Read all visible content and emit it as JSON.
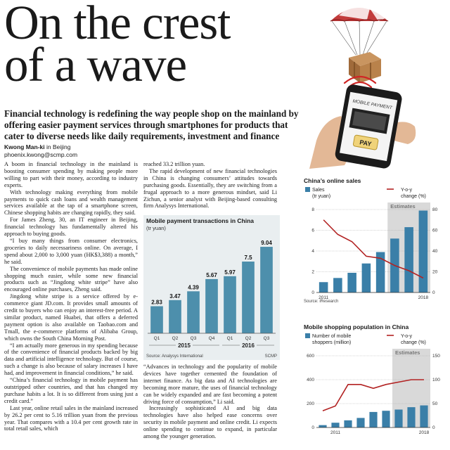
{
  "headline": [
    "On the crest",
    "of a wave"
  ],
  "deck": "Financial technology is redefining the way people shop on the mainland by offering easier payment services through smartphones for products that cater to diverse needs like daily requirements, investment and finance",
  "byline": {
    "name": "Kwong Man-ki",
    "location": "in Beijing",
    "email": "phoenix.kwong@scmp.com"
  },
  "illustration": {
    "phone_screen_text": "MOBILE PAYMENT",
    "pay_button": "PAY"
  },
  "col1_paragraphs": [
    "A boom in financial technology in the mainland is boosting consumer spending by making people more willing to part with their money, according to industry experts.",
    "With technology making everything from mobile payments to quick cash loans and wealth management services available at the tap of a smartphone screen, Chinese shopping habits are changing rapidly, they said.",
    "For James Zheng, 30, an IT engineer in Beijing, financial technology has fundamentally altered his approach to buying goods.",
    "“I buy many things from consumer electronics, groceries to daily necessariness online. On average, I spend about 2,000 to 3,000 yuan (HK$3,388) a month,” he said.",
    "The convenience of mobile payments has made online shopping much easier, while some new financial products such as “Jingdong white stripe” have also encouraged online purchases, Zheng said.",
    "Jingdong white stripe is a service offered by e-commerce giant JD.com. It provides small amounts of credit to buyers who can enjoy an interest-free period. A similar product, named Huabei, that offers a deferred payment option is also available on Taobao.com and Tmall, the e-commerce platforms of Alibaba Group, which owns the South China Morning Post.",
    "“I am actually more generous in my spending because of the convenience of financial products backed by big data and artificial intelligence technology. But of course, such a change is also because of salary increases I have had, and improvement in financial conditions,” he said.",
    "“China’s financial technology in mobile payment has outstripped other countries, and that has changed my purchase habits a lot. It is so different from using just a credit card.”",
    "Last year, online retail sales in the mainland increased by 26.2 per cent to 5.16 trillion yuan from the previous year. That compares with a 10.4 per cent growth rate in total retail sales, which"
  ],
  "col2_top_paragraphs": [
    "reached 33.2 trillion yuan.",
    "The rapid development of new financial technologies in China is changing consumers’ attitudes towards purchasing goods. Essentially, they are switching from a frugal approach to a more generous mindset, said Li Zichun, a senior analyst with Beijing-based consulting firm Analysys International."
  ],
  "col2_bottom_paragraphs": [
    "“Advances in technology and the popularity of mobile devices have together cemented the foundation of internet finance. As big data and AI technologies are becoming more mature, the uses of financial technology can be widely expanded and are fast becoming a potent driving force of consumption,” Li said.",
    "Increasingly sophisticated AI and big data technologies have also helped ease concerns over security in mobile payment and online credit. Li expects online spending to continue to expand, in particular among the younger generation."
  ],
  "chart_data": [
    {
      "type": "bar",
      "title": "Mobile payment transactions in China",
      "ylabel": "(tr yuan)",
      "categories": [
        "Q1",
        "Q2",
        "Q3",
        "Q4",
        "Q1",
        "Q2",
        "Q3"
      ],
      "groups": [
        {
          "label": "2015",
          "span": [
            0,
            3
          ]
        },
        {
          "label": "2016",
          "span": [
            4,
            6
          ]
        }
      ],
      "values": [
        2.83,
        3.47,
        4.39,
        5.67,
        5.97,
        7.5,
        9.04
      ],
      "value_labels": [
        "2.83",
        "3.47",
        "4.39",
        "5.67",
        "5.97",
        "7.5",
        "9.04"
      ],
      "ylim": [
        0,
        10
      ],
      "source": "Source: Analysys International",
      "credit": "SCMP",
      "colors": {
        "bar": "#4d8fac",
        "background": "#e9eef0"
      }
    },
    {
      "type": "bar+line",
      "title": "China’s online sales",
      "series": [
        {
          "name": "Sales",
          "unit": "(tr yuan)",
          "type": "bar",
          "values": [
            1.0,
            1.4,
            1.9,
            2.8,
            3.9,
            5.2,
            6.3,
            7.9
          ]
        },
        {
          "name": "Y-o-y change (%)",
          "type": "line",
          "values": [
            70,
            56,
            49,
            35,
            33,
            26,
            21,
            14
          ]
        }
      ],
      "x": [
        "2011",
        "2012",
        "2013",
        "2014",
        "2015",
        "2016",
        "2017",
        "2018"
      ],
      "x_tick_labels": [
        "2011",
        "2018"
      ],
      "y_left_ticks": [
        "8",
        "6",
        "4",
        "2",
        "0"
      ],
      "y_right_ticks": [
        "80",
        "60",
        "40",
        "20",
        "0"
      ],
      "ylim_left": [
        0,
        8
      ],
      "ylim_right": [
        0,
        80
      ],
      "estimates_label": "Estimates",
      "estimates_from": "2016",
      "source": "Source: iResearch",
      "colors": {
        "bar": "#3a7fa8",
        "line": "#b22222",
        "estimates": "#d9d9d9"
      }
    },
    {
      "type": "bar+line",
      "title": "Mobile shopping population in China",
      "series": [
        {
          "name": "Number of mobile shoppers (million)",
          "type": "bar",
          "values": [
            20,
            40,
            60,
            80,
            130,
            140,
            150,
            170,
            185
          ]
        },
        {
          "name": "Y-o-y change (%)",
          "type": "line",
          "values": [
            35,
            45,
            90,
            90,
            82,
            90,
            95,
            100,
            100
          ]
        }
      ],
      "x": [
        "2010",
        "2011",
        "2012",
        "2013",
        "2014",
        "2015",
        "2016",
        "2017",
        "2018"
      ],
      "x_tick_labels": [
        "2011",
        "2018"
      ],
      "y_left_ticks": [
        "600",
        "400",
        "200",
        "0"
      ],
      "y_right_ticks": [
        "150",
        "100",
        "50",
        "0"
      ],
      "estimates_label": "Estimates",
      "colors": {
        "bar": "#3a7fa8",
        "line": "#b22222",
        "estimates": "#d9d9d9"
      }
    }
  ]
}
